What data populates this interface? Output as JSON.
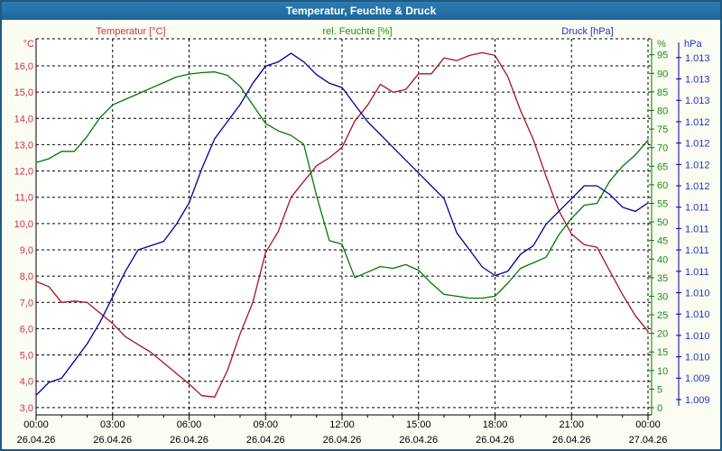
{
  "window": {
    "title": "Temperatur, Feuchte & Druck"
  },
  "legend": {
    "temperature": "Temperatur [°C]",
    "humidity": "rel. Feuchte [%]",
    "pressure": "Druck [hPa]"
  },
  "axis_units": {
    "temperature": "°C",
    "humidity": "%",
    "pressure": "hPa"
  },
  "colors": {
    "window_border": "#1d5a83",
    "titlebar": "#236da3",
    "titlebar_text": "#ffffff",
    "content_background": "#fbfcf2",
    "plot_background": "#ffffff",
    "grid": "#000000",
    "temperature_curve": "#aa1122",
    "temperature_labels": "#cc3344",
    "humidity_curve": "#007a00",
    "humidity_labels": "#1e8c1e",
    "pressure_curve": "#000099",
    "pressure_labels": "#2233cc",
    "x_labels": "#000000"
  },
  "chart_data": {
    "type": "line",
    "title": "Temperatur, Feuchte & Druck",
    "grid": "dashed",
    "x_axis": {
      "unit": "hours",
      "start": 0,
      "end": 24,
      "minor_tick_hours": 1,
      "major_tick_hours": 3,
      "major_ticks": [
        {
          "hour": 0,
          "time": "00:00",
          "date": "26.04.26"
        },
        {
          "hour": 3,
          "time": "03:00",
          "date": "26.04.26"
        },
        {
          "hour": 6,
          "time": "06:00",
          "date": "26.04.26"
        },
        {
          "hour": 9,
          "time": "09:00",
          "date": "26.04.26"
        },
        {
          "hour": 12,
          "time": "12:00",
          "date": "26.04.26"
        },
        {
          "hour": 15,
          "time": "15:00",
          "date": "26.04.26"
        },
        {
          "hour": 18,
          "time": "18:00",
          "date": "26.04.26"
        },
        {
          "hour": 21,
          "time": "21:00",
          "date": "26.04.26"
        },
        {
          "hour": 24,
          "time": "00:00",
          "date": "27.04.26"
        }
      ]
    },
    "y_axes": {
      "temperature": {
        "unit": "°C",
        "tick_values": [
          16,
          15,
          14,
          13,
          12,
          11,
          10,
          9,
          8,
          7,
          6,
          5,
          4,
          3
        ],
        "tick_labels": [
          "16,0",
          "15,0",
          "14,0",
          "13,0",
          "12,0",
          "11,0",
          "10,0",
          "9,0",
          "8,0",
          "7,0",
          "6,0",
          "5,0",
          "4,0",
          "3,0"
        ],
        "range_top": 17.03,
        "range_bottom": 2.72
      },
      "humidity": {
        "unit": "%",
        "tick_values": [
          95,
          90,
          85,
          80,
          75,
          70,
          65,
          60,
          55,
          50,
          45,
          40,
          35,
          30,
          25,
          20,
          15,
          10,
          5,
          0
        ],
        "range_top": 99.3,
        "range_bottom": -1.94
      },
      "pressure": {
        "unit": "hPa",
        "first_tick_value": 1013.25,
        "tick_step": -0.25,
        "tick_labels": [
          "1.013",
          "1.013",
          "1.013",
          "1.012",
          "1.012",
          "1.012",
          "1.012",
          "1.011",
          "1.011",
          "1.011",
          "1.011",
          "1.010",
          "1.010",
          "1.010",
          "1.010",
          "1.009",
          "1.009"
        ],
        "range_top": 1013.47,
        "range_bottom": 1009.07
      }
    },
    "sample_step_hours": 0.5,
    "series": [
      {
        "name": "Temperatur",
        "axis": "temperature",
        "unit": "°C",
        "color": "#aa1122",
        "values": [
          7.8,
          7.6,
          7.0,
          7.05,
          7.0,
          6.6,
          6.2,
          5.7,
          5.4,
          5.1,
          4.7,
          4.3,
          3.9,
          3.45,
          3.4,
          4.4,
          5.8,
          7.0,
          8.9,
          9.7,
          11.0,
          11.6,
          12.2,
          12.5,
          12.9,
          13.9,
          14.5,
          15.3,
          15.0,
          15.1,
          15.7,
          15.7,
          16.3,
          16.2,
          16.4,
          16.5,
          16.4,
          15.6,
          14.3,
          13.2,
          11.8,
          10.5,
          9.6,
          9.2,
          9.1,
          8.2,
          7.3,
          6.5,
          5.9
        ]
      },
      {
        "name": "rel. Feuchte",
        "axis": "humidity",
        "unit": "%",
        "color": "#007a00",
        "values": [
          66,
          67,
          69,
          69,
          73,
          78,
          81.5,
          83,
          84.5,
          86,
          87.5,
          89,
          89.8,
          90.2,
          90.4,
          89.5,
          86.5,
          81.5,
          76.5,
          74.5,
          73.3,
          70.9,
          57,
          45,
          44,
          35,
          36.5,
          38,
          37.5,
          38.5,
          37,
          33.5,
          30.5,
          30,
          29.5,
          29.5,
          30,
          33.5,
          37.5,
          39,
          40.5,
          46.5,
          51,
          54.5,
          55,
          61,
          65,
          68,
          72
        ]
      },
      {
        "name": "Druck",
        "axis": "pressure",
        "unit": "hPa",
        "color": "#000099",
        "values": [
          1009.3,
          1009.45,
          1009.5,
          1009.7,
          1009.9,
          1010.15,
          1010.45,
          1010.75,
          1011.0,
          1011.05,
          1011.1,
          1011.3,
          1011.55,
          1011.95,
          1012.3,
          1012.5,
          1012.7,
          1012.95,
          1013.15,
          1013.2,
          1013.3,
          1013.2,
          1013.05,
          1012.95,
          1012.9,
          1012.7,
          1012.5,
          1012.35,
          1012.2,
          1012.05,
          1011.9,
          1011.75,
          1011.6,
          1011.2,
          1011.0,
          1010.8,
          1010.7,
          1010.75,
          1010.95,
          1011.05,
          1011.3,
          1011.45,
          1011.6,
          1011.75,
          1011.75,
          1011.65,
          1011.5,
          1011.45,
          1011.55
        ]
      }
    ]
  }
}
